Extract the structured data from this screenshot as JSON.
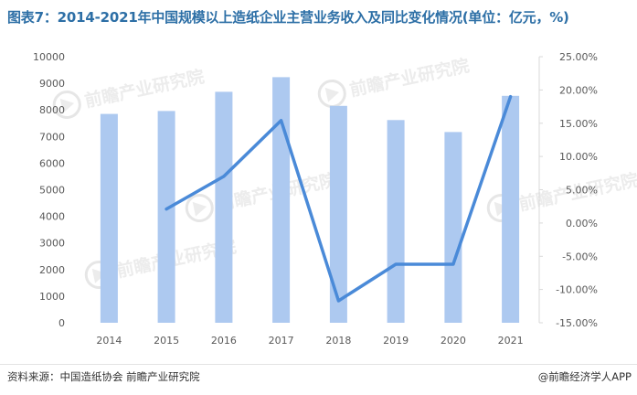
{
  "title": "图表7：2014-2021年中国规模以上造纸企业主营业务收入及同比变化情况(单位：亿元，%)",
  "source": "资料来源：中国造纸协会 前瞻产业研究院",
  "brand": "@前瞻经济学人APP",
  "watermark_text": "前瞻产业研究院",
  "colors": {
    "bar": "#adc9f0",
    "line": "#4a8ad8",
    "title": "#2d6fa6",
    "axis_text": "#595959"
  },
  "chart_data": {
    "type": "bar+line",
    "categories": [
      "2014",
      "2015",
      "2016",
      "2017",
      "2018",
      "2019",
      "2020",
      "2021"
    ],
    "series": [
      {
        "axis": "left",
        "type": "bar",
        "values": [
          7850,
          7960,
          8680,
          9230,
          8150,
          7620,
          7170,
          8530
        ]
      },
      {
        "axis": "right",
        "type": "line",
        "values": [
          null,
          2.1,
          7.0,
          15.4,
          -11.7,
          -6.2,
          -6.2,
          19.0
        ]
      }
    ],
    "y_left": {
      "min": 0,
      "max": 10000,
      "step": 1000,
      "ticks": [
        "0",
        "1000",
        "2000",
        "3000",
        "4000",
        "5000",
        "6000",
        "7000",
        "8000",
        "9000",
        "10000"
      ]
    },
    "y_right": {
      "min": -15,
      "max": 25,
      "step": 5,
      "ticks": [
        "-15.00%",
        "-10.00%",
        "-5.00%",
        "0.00%",
        "5.00%",
        "10.00%",
        "15.00%",
        "20.00%",
        "25.00%"
      ]
    },
    "grid": false,
    "legend": "none"
  }
}
